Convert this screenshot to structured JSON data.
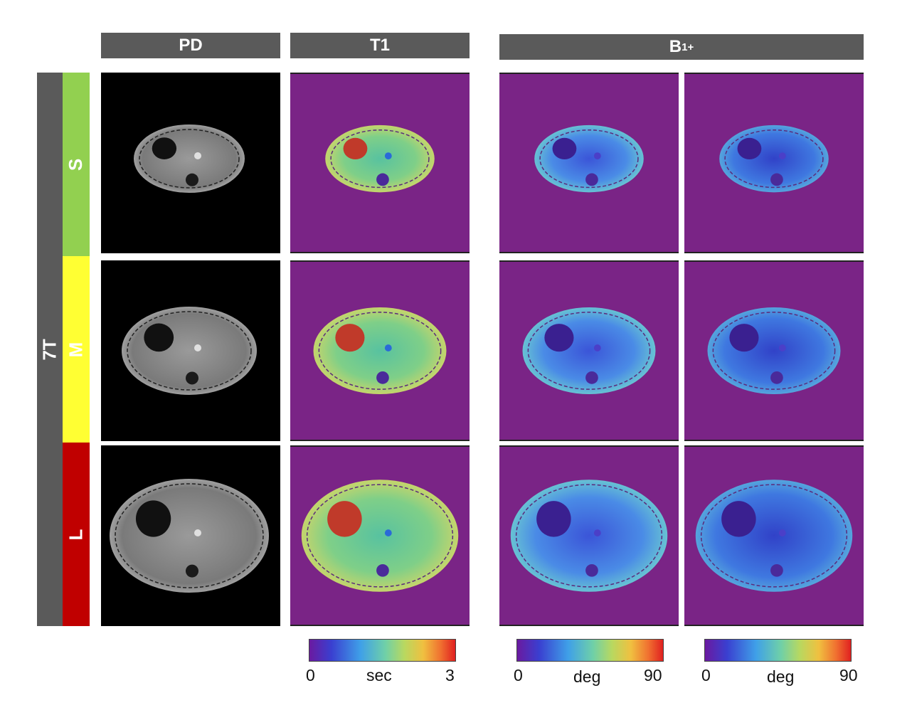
{
  "columns": {
    "pd": "PD",
    "t1": "T1",
    "b1": {
      "base": "B",
      "sub": "1",
      "sup": "+"
    }
  },
  "field_label": "7T",
  "rows": [
    {
      "label": "S",
      "color": "#92d050"
    },
    {
      "label": "M",
      "color": "#ffff33"
    },
    {
      "label": "L",
      "color": "#c00000"
    }
  ],
  "colorbars": [
    {
      "min": "0",
      "unit": "sec",
      "max": "3"
    },
    {
      "min": "0",
      "unit": "deg",
      "max": "90"
    },
    {
      "min": "0",
      "unit": "deg",
      "max": "90"
    }
  ],
  "colors": {
    "header_bg": "#5a5a5a",
    "field_bar": "#5a5a5a",
    "map_background": "#7a2486",
    "pd_background": "#000000"
  }
}
